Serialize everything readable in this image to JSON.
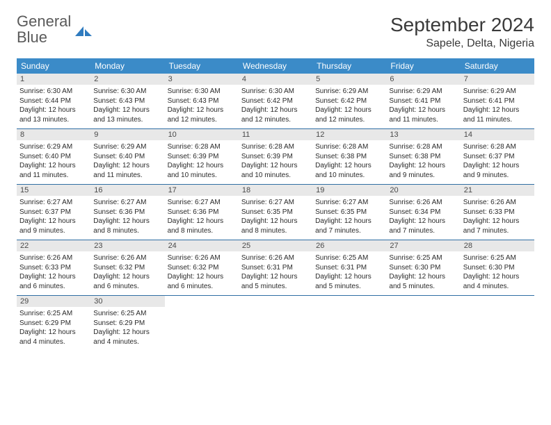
{
  "logo": {
    "text_part1": "General",
    "text_part2": "Blue",
    "icon_color": "#2f7bbf"
  },
  "header": {
    "month_title": "September 2024",
    "location": "Sapele, Delta, Nigeria"
  },
  "colors": {
    "header_bg": "#3b8bc8",
    "daynum_bg": "#e8e8e8",
    "border": "#2f6ea3",
    "logo_gray": "#5a5a5a",
    "logo_blue": "#2f7bbf",
    "text": "#2a2a2a"
  },
  "weekdays": [
    "Sunday",
    "Monday",
    "Tuesday",
    "Wednesday",
    "Thursday",
    "Friday",
    "Saturday"
  ],
  "weeks": [
    [
      {
        "num": "1",
        "sunrise": "6:30 AM",
        "sunset": "6:44 PM",
        "daylight": "12 hours and 13 minutes."
      },
      {
        "num": "2",
        "sunrise": "6:30 AM",
        "sunset": "6:43 PM",
        "daylight": "12 hours and 13 minutes."
      },
      {
        "num": "3",
        "sunrise": "6:30 AM",
        "sunset": "6:43 PM",
        "daylight": "12 hours and 12 minutes."
      },
      {
        "num": "4",
        "sunrise": "6:30 AM",
        "sunset": "6:42 PM",
        "daylight": "12 hours and 12 minutes."
      },
      {
        "num": "5",
        "sunrise": "6:29 AM",
        "sunset": "6:42 PM",
        "daylight": "12 hours and 12 minutes."
      },
      {
        "num": "6",
        "sunrise": "6:29 AM",
        "sunset": "6:41 PM",
        "daylight": "12 hours and 11 minutes."
      },
      {
        "num": "7",
        "sunrise": "6:29 AM",
        "sunset": "6:41 PM",
        "daylight": "12 hours and 11 minutes."
      }
    ],
    [
      {
        "num": "8",
        "sunrise": "6:29 AM",
        "sunset": "6:40 PM",
        "daylight": "12 hours and 11 minutes."
      },
      {
        "num": "9",
        "sunrise": "6:29 AM",
        "sunset": "6:40 PM",
        "daylight": "12 hours and 11 minutes."
      },
      {
        "num": "10",
        "sunrise": "6:28 AM",
        "sunset": "6:39 PM",
        "daylight": "12 hours and 10 minutes."
      },
      {
        "num": "11",
        "sunrise": "6:28 AM",
        "sunset": "6:39 PM",
        "daylight": "12 hours and 10 minutes."
      },
      {
        "num": "12",
        "sunrise": "6:28 AM",
        "sunset": "6:38 PM",
        "daylight": "12 hours and 10 minutes."
      },
      {
        "num": "13",
        "sunrise": "6:28 AM",
        "sunset": "6:38 PM",
        "daylight": "12 hours and 9 minutes."
      },
      {
        "num": "14",
        "sunrise": "6:28 AM",
        "sunset": "6:37 PM",
        "daylight": "12 hours and 9 minutes."
      }
    ],
    [
      {
        "num": "15",
        "sunrise": "6:27 AM",
        "sunset": "6:37 PM",
        "daylight": "12 hours and 9 minutes."
      },
      {
        "num": "16",
        "sunrise": "6:27 AM",
        "sunset": "6:36 PM",
        "daylight": "12 hours and 8 minutes."
      },
      {
        "num": "17",
        "sunrise": "6:27 AM",
        "sunset": "6:36 PM",
        "daylight": "12 hours and 8 minutes."
      },
      {
        "num": "18",
        "sunrise": "6:27 AM",
        "sunset": "6:35 PM",
        "daylight": "12 hours and 8 minutes."
      },
      {
        "num": "19",
        "sunrise": "6:27 AM",
        "sunset": "6:35 PM",
        "daylight": "12 hours and 7 minutes."
      },
      {
        "num": "20",
        "sunrise": "6:26 AM",
        "sunset": "6:34 PM",
        "daylight": "12 hours and 7 minutes."
      },
      {
        "num": "21",
        "sunrise": "6:26 AM",
        "sunset": "6:33 PM",
        "daylight": "12 hours and 7 minutes."
      }
    ],
    [
      {
        "num": "22",
        "sunrise": "6:26 AM",
        "sunset": "6:33 PM",
        "daylight": "12 hours and 6 minutes."
      },
      {
        "num": "23",
        "sunrise": "6:26 AM",
        "sunset": "6:32 PM",
        "daylight": "12 hours and 6 minutes."
      },
      {
        "num": "24",
        "sunrise": "6:26 AM",
        "sunset": "6:32 PM",
        "daylight": "12 hours and 6 minutes."
      },
      {
        "num": "25",
        "sunrise": "6:26 AM",
        "sunset": "6:31 PM",
        "daylight": "12 hours and 5 minutes."
      },
      {
        "num": "26",
        "sunrise": "6:25 AM",
        "sunset": "6:31 PM",
        "daylight": "12 hours and 5 minutes."
      },
      {
        "num": "27",
        "sunrise": "6:25 AM",
        "sunset": "6:30 PM",
        "daylight": "12 hours and 5 minutes."
      },
      {
        "num": "28",
        "sunrise": "6:25 AM",
        "sunset": "6:30 PM",
        "daylight": "12 hours and 4 minutes."
      }
    ],
    [
      {
        "num": "29",
        "sunrise": "6:25 AM",
        "sunset": "6:29 PM",
        "daylight": "12 hours and 4 minutes."
      },
      {
        "num": "30",
        "sunrise": "6:25 AM",
        "sunset": "6:29 PM",
        "daylight": "12 hours and 4 minutes."
      },
      null,
      null,
      null,
      null,
      null
    ]
  ],
  "labels": {
    "sunrise_prefix": "Sunrise: ",
    "sunset_prefix": "Sunset: ",
    "daylight_prefix": "Daylight: "
  }
}
